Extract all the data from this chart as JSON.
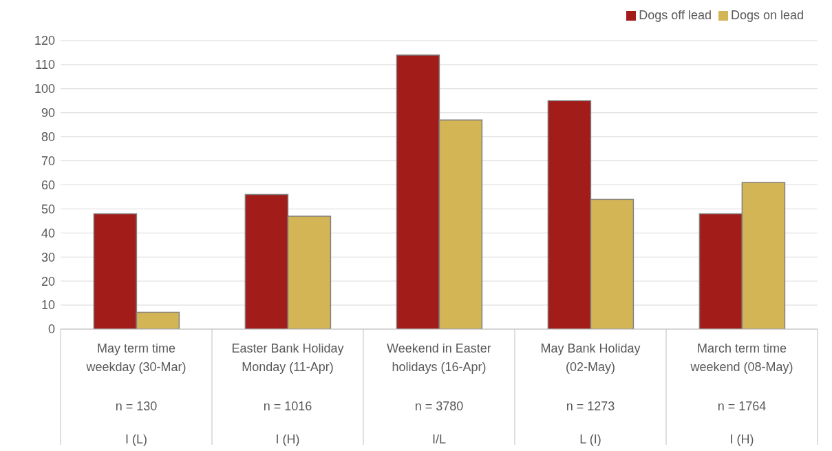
{
  "chart_data": {
    "type": "bar",
    "categories": [
      "May term time weekday (30-Mar)\nn = 130\nI (L)",
      "Easter Bank Holiday Monday (11-Apr)\nn = 1016\nI (H)",
      "Weekend in Easter holidays (16-Apr)\nn = 3780\nI/L",
      "May Bank Holiday (02-May)\nn = 1273\nL (I)",
      "March term time weekend (08-May)\nn = 1764\nI (H)"
    ],
    "series": [
      {
        "name": "Dogs off lead",
        "color": "#a21c1a",
        "values": [
          48,
          56,
          114,
          95,
          48
        ]
      },
      {
        "name": "Dogs on lead",
        "color": "#d4b556",
        "values": [
          7,
          47,
          87,
          54,
          61
        ]
      }
    ],
    "ylim": [
      0,
      120
    ],
    "yticks": [
      0,
      10,
      20,
      30,
      40,
      50,
      60,
      70,
      80,
      90,
      100,
      110,
      120
    ],
    "grid": "y",
    "legend": "top right"
  }
}
